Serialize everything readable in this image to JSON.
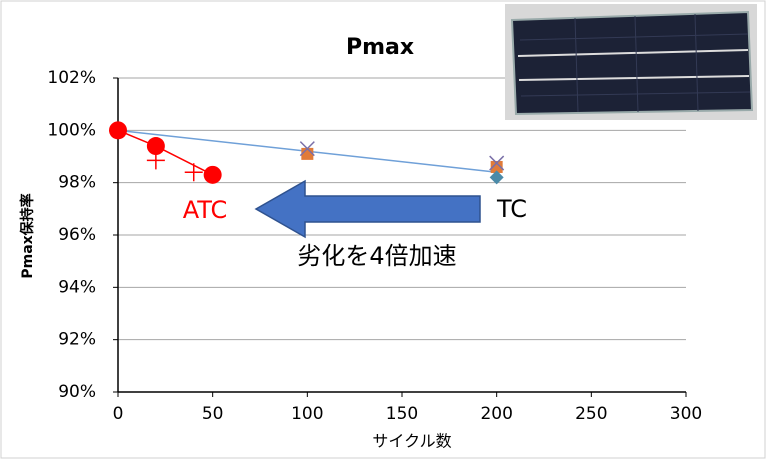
{
  "chart_data": {
    "type": "scatter",
    "title": "Pmax",
    "x_label": "サイクル数",
    "y_label": "Pmax保持率",
    "xlim": [
      0,
      300
    ],
    "xticks": [
      0,
      50,
      100,
      150,
      200,
      250,
      300
    ],
    "ylim": [
      90,
      102
    ],
    "yticks": [
      {
        "value": 90,
        "label": "90%"
      },
      {
        "value": 92,
        "label": "92%"
      },
      {
        "value": 94,
        "label": "94%"
      },
      {
        "value": 96,
        "label": "96%"
      },
      {
        "value": 98,
        "label": "98%"
      },
      {
        "value": 100,
        "label": "100%"
      },
      {
        "value": 102,
        "label": "102%"
      }
    ],
    "grid": true,
    "series": [
      {
        "name": "ATC",
        "color": "#ff0000",
        "marker": "circle",
        "line": true,
        "x": [
          0,
          20,
          50
        ],
        "values": [
          100,
          99.4,
          98.3
        ]
      },
      {
        "color": "#ff0000",
        "marker": "plus",
        "line": false,
        "x": [
          20,
          40
        ],
        "values": [
          98.85,
          98.4
        ]
      },
      {
        "name": "TC",
        "color": "#6fa0d8",
        "marker": "none",
        "line": true,
        "x": [
          0,
          200
        ],
        "values": [
          100,
          98.4
        ]
      },
      {
        "color": "#e07b39",
        "marker": "square",
        "line": false,
        "x": [
          100,
          200
        ],
        "values": [
          99.1,
          98.6
        ]
      },
      {
        "color": "#7a6fa8",
        "marker": "x",
        "line": false,
        "x": [
          100,
          200
        ],
        "values": [
          99.3,
          98.75
        ]
      },
      {
        "color": "#4a8aa8",
        "marker": "diamond",
        "line": false,
        "x": [
          200
        ],
        "values": [
          98.2
        ]
      }
    ],
    "annotation": "劣化を4倍加速"
  }
}
